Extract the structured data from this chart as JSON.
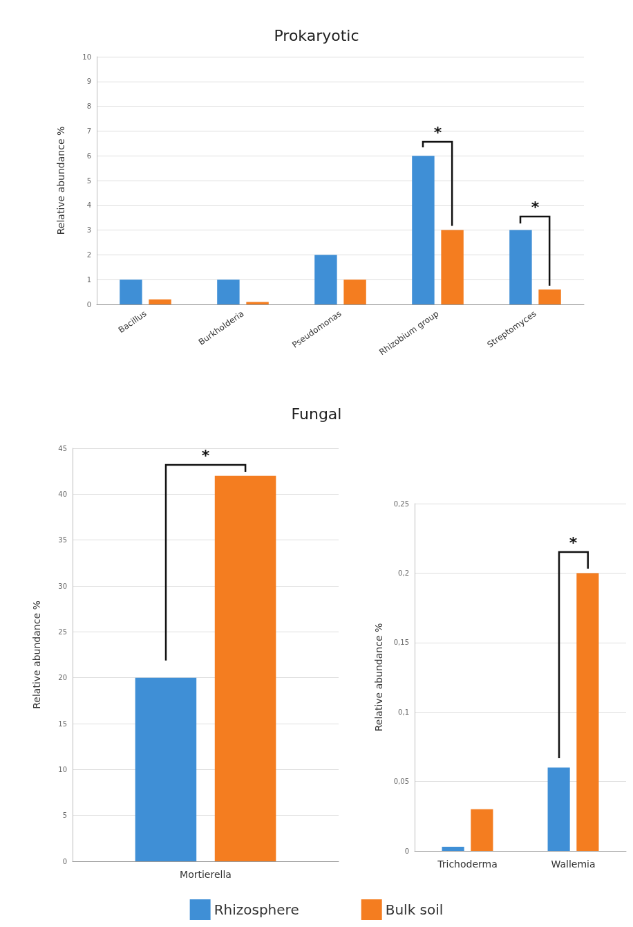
{
  "chart_data": [
    {
      "type": "bar",
      "title": "Prokaryotic",
      "ylabel": "Relative abundance %",
      "categories": [
        "Bacillus",
        "Burkholderia",
        "Pseudomonas",
        "Rhizobium group",
        "Streptomyces"
      ],
      "series": [
        {
          "color": "#3f8fd6",
          "values": [
            1,
            1,
            2,
            6,
            3
          ]
        },
        {
          "color": "#f47d20",
          "values": [
            0.2,
            0.1,
            1,
            3,
            0.6
          ]
        }
      ],
      "ylim": [
        0,
        10
      ],
      "yticks": [
        0,
        1,
        2,
        3,
        4,
        5,
        6,
        7,
        8,
        9,
        10
      ],
      "grid": "y",
      "legend": false,
      "annotations": [
        "*",
        "*"
      ]
    },
    {
      "type": "bar",
      "title": "Fungal",
      "ylabel": "Relative abundance %",
      "categories": [
        "Mortierella"
      ],
      "series": [
        {
          "name": "Rhizosphere",
          "color": "#3f8fd6",
          "values": [
            20
          ]
        },
        {
          "name": "Bulk soil",
          "color": "#f47d20",
          "values": [
            42
          ]
        }
      ],
      "ylim": [
        0,
        45
      ],
      "yticks": [
        0,
        5,
        10,
        15,
        20,
        25,
        30,
        35,
        40,
        45
      ],
      "grid": "y",
      "legend": "bottom",
      "annotations": [
        "*"
      ]
    },
    {
      "type": "bar",
      "ylabel": "Relative abundance %",
      "categories": [
        "Trichoderma",
        "Wallemia"
      ],
      "series": [
        {
          "color": "#3f8fd6",
          "values": [
            0.003,
            0.06
          ]
        },
        {
          "color": "#f47d20",
          "values": [
            0.03,
            0.2
          ]
        }
      ],
      "ylim": [
        0,
        0.25
      ],
      "yticks": [
        0,
        {
          "value": 0.05,
          "label": "0,05"
        },
        {
          "value": 0.1,
          "label": "0,1"
        },
        {
          "value": 0.15,
          "label": "0,15"
        },
        {
          "value": 0.2,
          "label": "0,2"
        },
        {
          "value": 0.25,
          "label": "0,25"
        }
      ],
      "grid": "y",
      "legend": false,
      "annotations": [
        "*"
      ]
    }
  ]
}
